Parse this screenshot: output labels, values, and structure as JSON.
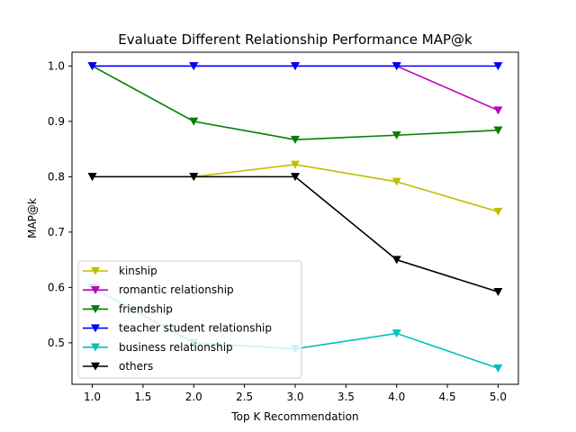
{
  "chart_data": {
    "type": "line",
    "title": "Evaluate Different Relationship Performance MAP@k",
    "xlabel": "Top K Recommendation",
    "ylabel": "MAP@k",
    "x": [
      1,
      2,
      3,
      4,
      5
    ],
    "xlim": [
      0.8,
      5.2
    ],
    "ylim": [
      0.425,
      1.025
    ],
    "xticks": [
      "1.0",
      "1.5",
      "2.0",
      "2.5",
      "3.0",
      "3.5",
      "4.0",
      "4.5",
      "5.0"
    ],
    "yticks": [
      "0.5",
      "0.6",
      "0.7",
      "0.8",
      "0.9",
      "1.0"
    ],
    "grid": false,
    "legend_position": "lower-left",
    "marker": "down-triangle",
    "series": [
      {
        "name": "kinship",
        "color": "#bfbf00",
        "values": [
          0.8,
          0.8,
          0.822,
          0.791,
          0.737
        ]
      },
      {
        "name": "romantic relationship",
        "color": "#bf00bf",
        "values": [
          1.0,
          1.0,
          1.0,
          1.0,
          0.92
        ]
      },
      {
        "name": "friendship",
        "color": "#008000",
        "values": [
          1.0,
          0.9,
          0.867,
          0.875,
          0.884
        ]
      },
      {
        "name": "teacher student relationship",
        "color": "#0000ff",
        "values": [
          1.0,
          1.0,
          1.0,
          1.0,
          1.0
        ]
      },
      {
        "name": "business relationship",
        "color": "#00bfbf",
        "values": [
          0.6,
          0.5,
          0.489,
          0.517,
          0.454
        ]
      },
      {
        "name": "others",
        "color": "#000000",
        "values": [
          0.8,
          0.8,
          0.8,
          0.65,
          0.592
        ]
      }
    ]
  }
}
